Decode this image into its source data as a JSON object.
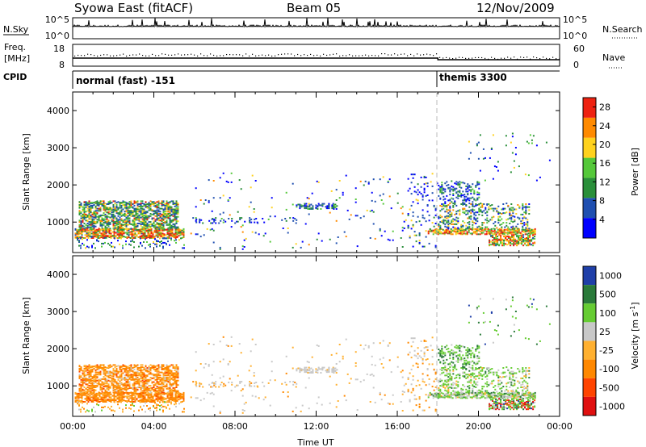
{
  "header": {
    "station": "Syowa East (fitACF)",
    "beam": "Beam 05",
    "date": "12/Nov/2009"
  },
  "top_panels": {
    "nsky_label": "N.Sky",
    "nsky_top_tick": "10^5",
    "nsky_bottom_tick": "10^0",
    "nsearch_label": "N.Search",
    "nsearch_top_tick": "10^5",
    "nsearch_bottom_tick": "10^0",
    "freq_label_1": "Freq.",
    "freq_label_2": "[MHz]",
    "freq_top_tick": "18",
    "freq_bottom_tick": "8",
    "nave_label": "Nave",
    "nave_top_tick": "60",
    "nave_bottom_tick": "0",
    "cpid_label": "CPID",
    "cpid_1": "normal (fast) -151",
    "cpid_2": "themis 3300"
  },
  "chart_data": [
    {
      "type": "heatmap",
      "name": "power",
      "ylabel": "Slant Range [km]",
      "xlabel": "",
      "ylim": [
        180,
        4500
      ],
      "xlim_hours": [
        0,
        24
      ],
      "yticks": [
        "1000",
        "2000",
        "3000",
        "4000"
      ],
      "colorbar_label": "Power [dB]",
      "colorbar_ticks": [
        "4",
        "8",
        "12",
        "16",
        "20",
        "24",
        "28"
      ],
      "colorbar_range": [
        0,
        30
      ],
      "colors": [
        "#0000ff",
        "#1f4fb0",
        "#2a8f3a",
        "#55c83a",
        "#ffd21e",
        "#ff8a00",
        "#ee2211"
      ],
      "marker_hour": 18
    },
    {
      "type": "heatmap",
      "name": "velocity",
      "ylabel": "Slant Range [km]",
      "xlabel": "Time UT",
      "ylim": [
        180,
        4500
      ],
      "xlim_hours": [
        0,
        24
      ],
      "yticks": [
        "1000",
        "2000",
        "3000",
        "4000"
      ],
      "xticks": [
        "00:00",
        "04:00",
        "08:00",
        "12:00",
        "16:00",
        "20:00",
        "00:00"
      ],
      "colorbar_label": "Velocity [m s",
      "colorbar_label_sup": "-1",
      "colorbar_label_end": "]",
      "colorbar_ticks": [
        "1000",
        "500",
        "100",
        "25",
        "-25",
        "-100",
        "-500",
        "-1000"
      ],
      "colors": [
        "#1f3fa8",
        "#2a7a3a",
        "#66cc33",
        "#c8c8c8",
        "#ffb030",
        "#ff8800",
        "#ff4400",
        "#e01010"
      ],
      "marker_hour": 18
    }
  ]
}
